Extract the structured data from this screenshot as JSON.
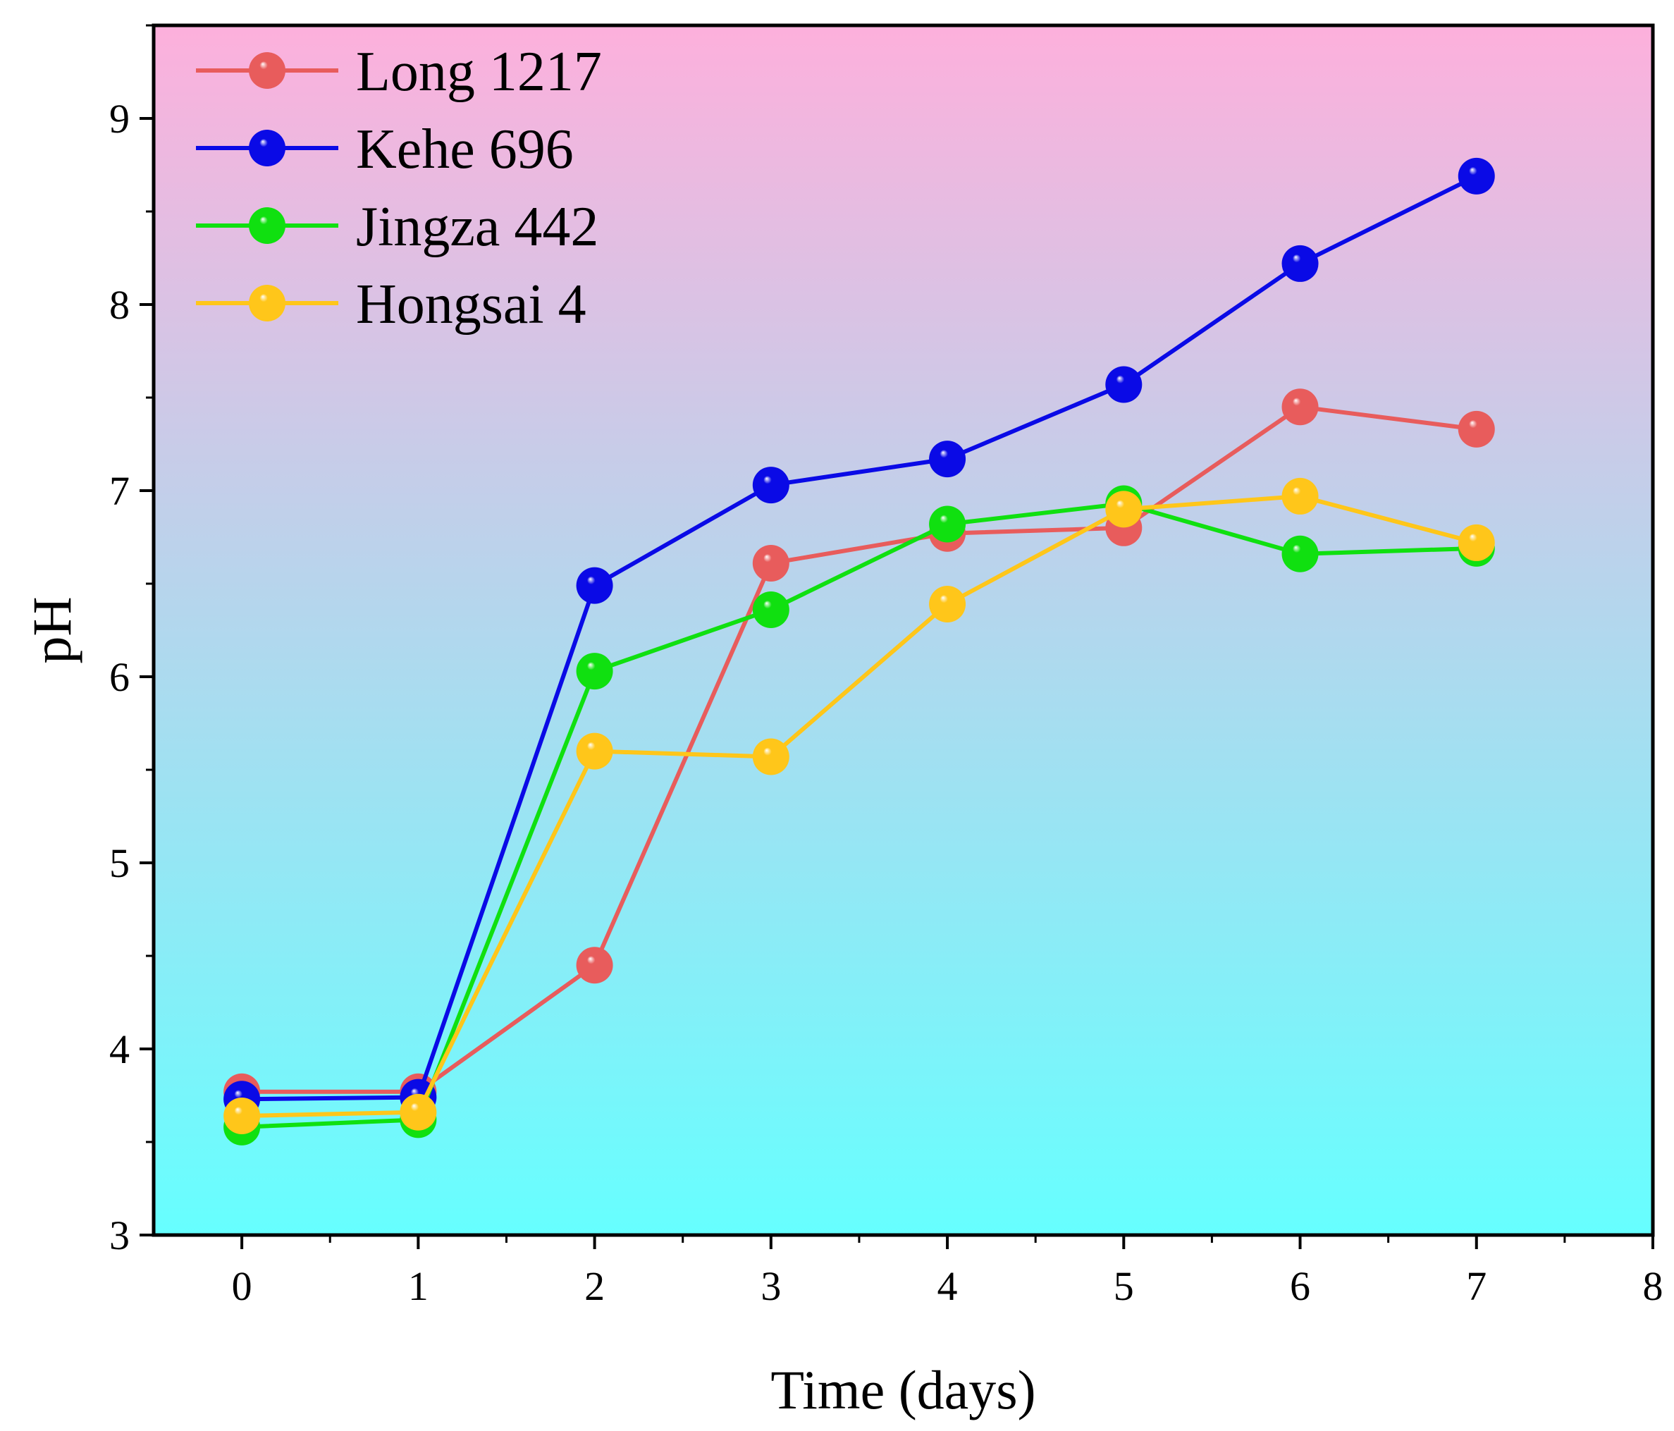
{
  "chart_data": {
    "type": "line",
    "title": "",
    "xlabel": "Time (days)",
    "ylabel": "pH",
    "xlim": [
      -0.5,
      8
    ],
    "ylim": [
      3,
      9.5
    ],
    "x_ticks": [
      0,
      1,
      2,
      3,
      4,
      5,
      6,
      7,
      8
    ],
    "y_ticks": [
      3,
      4,
      5,
      6,
      7,
      8,
      9
    ],
    "x": [
      0,
      1,
      2,
      3,
      4,
      5,
      6,
      7
    ],
    "legend_position": "top-left",
    "background_gradient": {
      "top": "#FDB0DC",
      "bottom": "#66FFFF"
    },
    "series": [
      {
        "name": "Long 1217",
        "color": "#E85C5C",
        "values": [
          3.77,
          3.77,
          4.45,
          6.61,
          6.77,
          6.8,
          7.45,
          7.33
        ]
      },
      {
        "name": "Kehe 696",
        "color": "#0A0AE6",
        "values": [
          3.73,
          3.74,
          6.49,
          7.03,
          7.17,
          7.57,
          8.22,
          8.69
        ]
      },
      {
        "name": "Jingza 442",
        "color": "#10E010",
        "values": [
          3.58,
          3.62,
          6.03,
          6.36,
          6.82,
          6.93,
          6.66,
          6.69
        ]
      },
      {
        "name": "Hongsai 4",
        "color": "#FFC61A",
        "values": [
          3.64,
          3.66,
          5.6,
          5.57,
          6.39,
          6.9,
          6.97,
          6.72
        ]
      }
    ]
  }
}
